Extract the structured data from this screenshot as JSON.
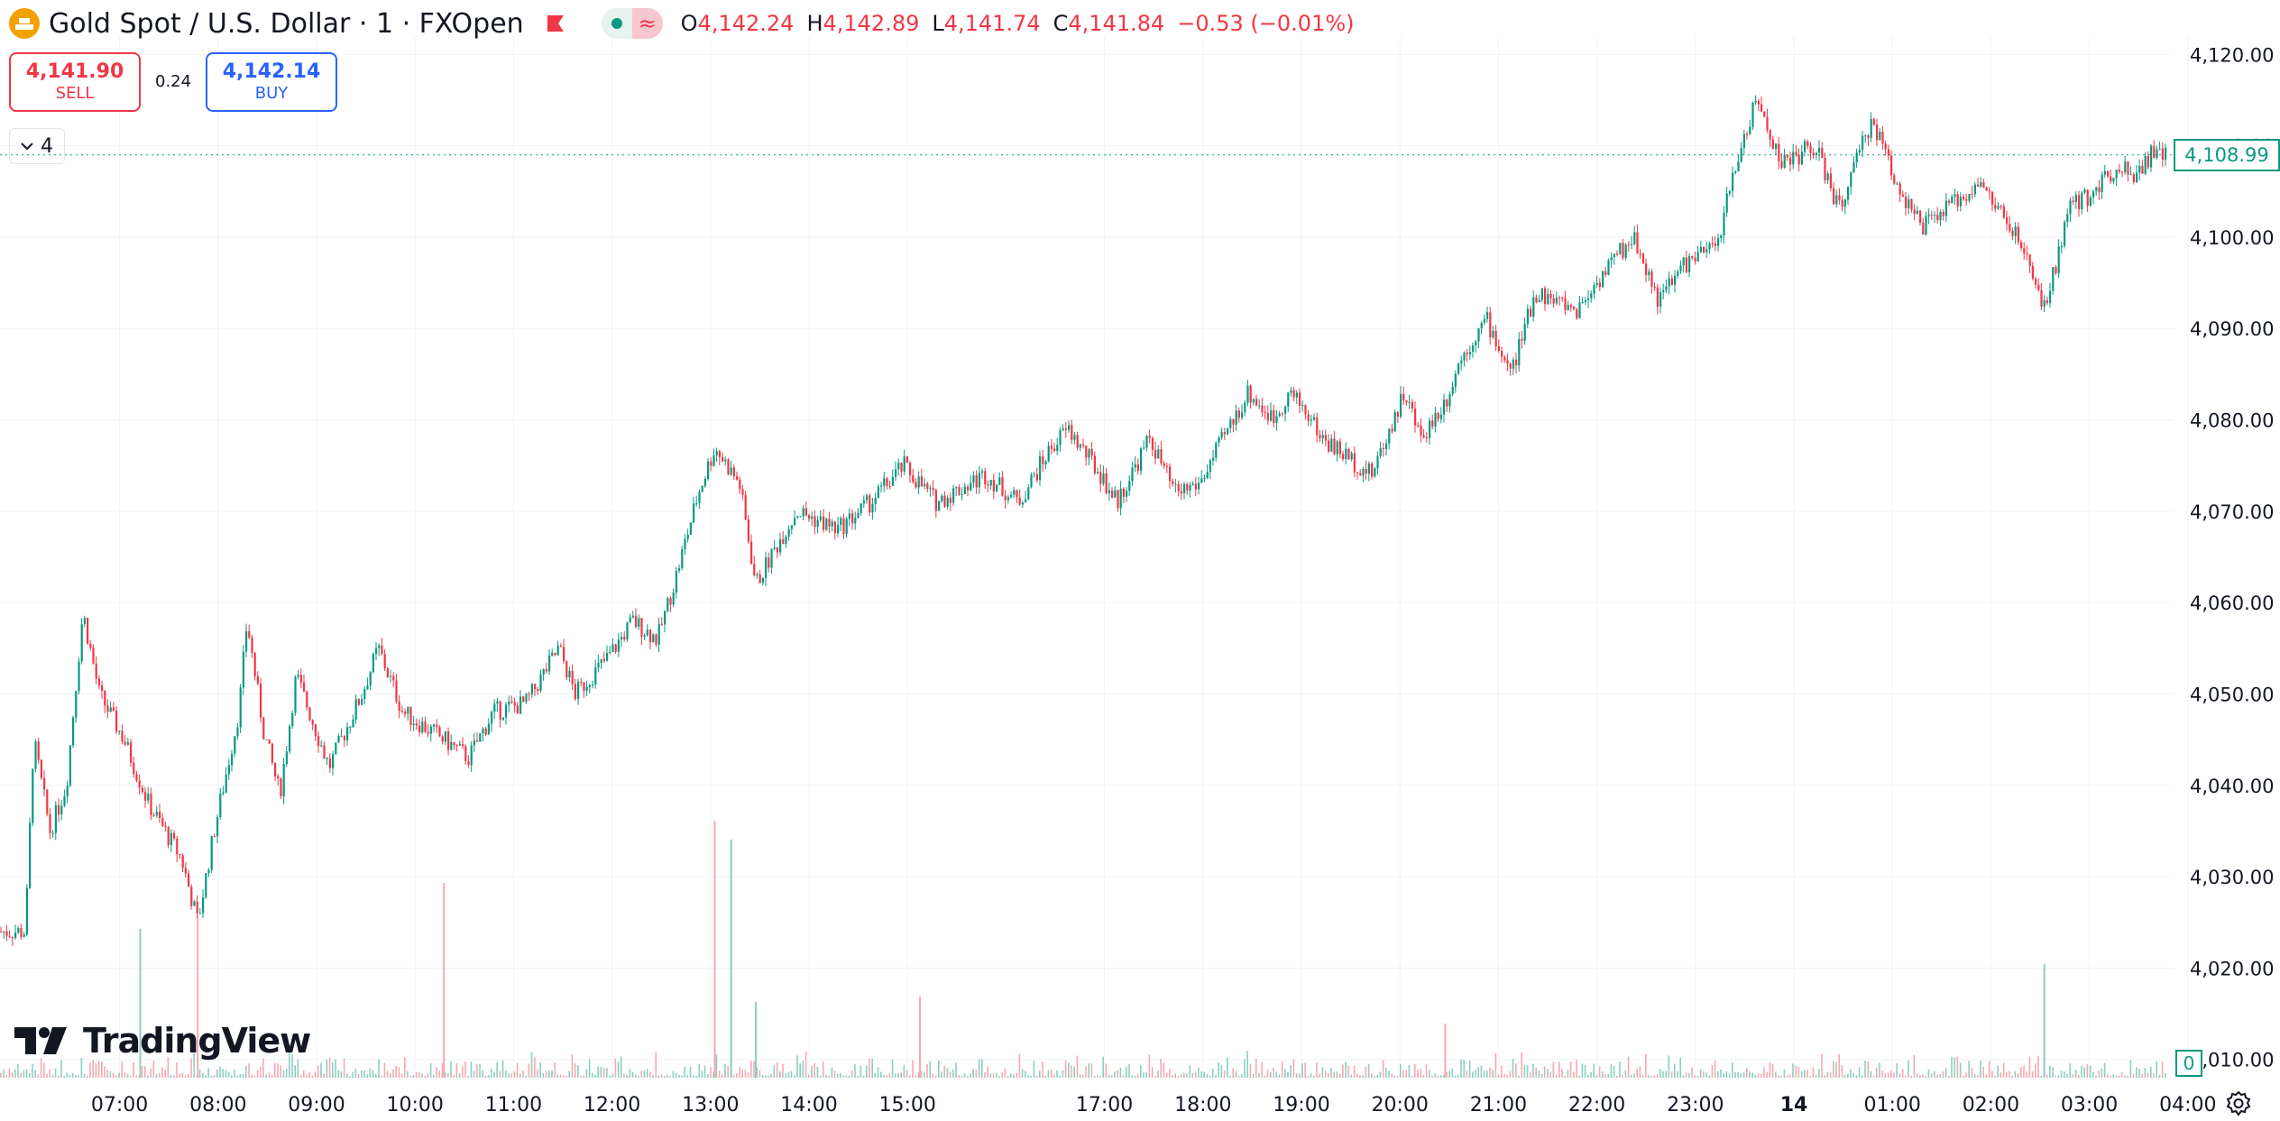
{
  "header": {
    "symbol_title": "Gold Spot / U.S. Dollar · 1 · FXOpen",
    "ohlc": [
      {
        "key": "O",
        "value": "4,142.24"
      },
      {
        "key": "H",
        "value": "4,142.89"
      },
      {
        "key": "L",
        "value": "4,141.74"
      },
      {
        "key": "C",
        "value": "4,141.84"
      }
    ],
    "change": "−0.53 (−0.01%)",
    "icons": [
      "gold-coin-icon",
      "flag-icon",
      "market-open-dot-icon",
      "indicator-wave-icon"
    ]
  },
  "trade": {
    "sell_price": "4,141.90",
    "sell_label": "SELL",
    "spread": "0.24",
    "buy_price": "4,142.14",
    "buy_label": "BUY"
  },
  "indicators_toggle": {
    "count": "4"
  },
  "branding": {
    "logo_text": "TradingView"
  },
  "price_scale": {
    "last_price_label": "4,108.99",
    "volume_label": "0"
  },
  "colors": {
    "up": "#089981",
    "down": "#f23645",
    "up_volume": "#8dcfc2",
    "down_volume": "#f7a9b0",
    "grid": "#f0f3fa",
    "text": "#131722"
  },
  "chart_data": {
    "type": "candlestick",
    "y_axis": {
      "ticks": [
        "4,120.00",
        "4,110.00",
        "4,100.00",
        "4,090.00",
        "4,080.00",
        "4,070.00",
        "4,060.00",
        "4,050.00",
        "4,040.00",
        "4,030.00",
        "4,020.00",
        "4,010.00"
      ],
      "range": [
        4008,
        4122
      ],
      "position": "right"
    },
    "x_axis": {
      "ticks": [
        "07:00",
        "08:00",
        "09:00",
        "10:00",
        "11:00",
        "12:00",
        "13:00",
        "14:00",
        "15:00",
        "17:00",
        "18:00",
        "19:00",
        "20:00",
        "21:00",
        "22:00",
        "23:00",
        "14",
        "01:00",
        "02:00",
        "03:00",
        "04:00"
      ]
    },
    "grid": true,
    "price_path": [
      {
        "t": "06:35",
        "v": 4024
      },
      {
        "t": "06:40",
        "v": 4045
      },
      {
        "t": "06:50",
        "v": 4035
      },
      {
        "t": "07:00",
        "v": 4040
      },
      {
        "t": "07:10",
        "v": 4059
      },
      {
        "t": "07:20",
        "v": 4050
      },
      {
        "t": "07:35",
        "v": 4045
      },
      {
        "t": "07:50",
        "v": 4038
      },
      {
        "t": "08:10",
        "v": 4032
      },
      {
        "t": "08:20",
        "v": 4025
      },
      {
        "t": "08:30",
        "v": 4035
      },
      {
        "t": "08:45",
        "v": 4048
      },
      {
        "t": "08:50",
        "v": 4058
      },
      {
        "t": "09:00",
        "v": 4046
      },
      {
        "t": "09:10",
        "v": 4039
      },
      {
        "t": "09:20",
        "v": 4052
      },
      {
        "t": "09:40",
        "v": 4042
      },
      {
        "t": "10:00",
        "v": 4050
      },
      {
        "t": "10:10",
        "v": 4055
      },
      {
        "t": "10:25",
        "v": 4048
      },
      {
        "t": "10:50",
        "v": 4045
      },
      {
        "t": "11:05",
        "v": 4043
      },
      {
        "t": "11:20",
        "v": 4048
      },
      {
        "t": "11:40",
        "v": 4049
      },
      {
        "t": "12:00",
        "v": 4055
      },
      {
        "t": "12:10",
        "v": 4050
      },
      {
        "t": "12:30",
        "v": 4054
      },
      {
        "t": "12:45",
        "v": 4058
      },
      {
        "t": "13:00",
        "v": 4056
      },
      {
        "t": "13:10",
        "v": 4062
      },
      {
        "t": "13:25",
        "v": 4072
      },
      {
        "t": "13:35",
        "v": 4077
      },
      {
        "t": "13:50",
        "v": 4073
      },
      {
        "t": "14:00",
        "v": 4062
      },
      {
        "t": "14:15",
        "v": 4067
      },
      {
        "t": "14:25",
        "v": 4070
      },
      {
        "t": "14:50",
        "v": 4068
      },
      {
        "t": "15:10",
        "v": 4071
      },
      {
        "t": "15:30",
        "v": 4075
      },
      {
        "t": "15:50",
        "v": 4071
      },
      {
        "t": "16:20",
        "v": 4074
      },
      {
        "t": "16:40",
        "v": 4071
      },
      {
        "t": "17:00",
        "v": 4077
      },
      {
        "t": "17:10",
        "v": 4079
      },
      {
        "t": "17:30",
        "v": 4074
      },
      {
        "t": "17:40",
        "v": 4071
      },
      {
        "t": "18:00",
        "v": 4078
      },
      {
        "t": "18:15",
        "v": 4072
      },
      {
        "t": "18:30",
        "v": 4073
      },
      {
        "t": "18:45",
        "v": 4078
      },
      {
        "t": "19:00",
        "v": 4083
      },
      {
        "t": "19:15",
        "v": 4080
      },
      {
        "t": "19:25",
        "v": 4083
      },
      {
        "t": "19:35",
        "v": 4081
      },
      {
        "t": "19:45",
        "v": 4078
      },
      {
        "t": "20:00",
        "v": 4076
      },
      {
        "t": "20:15",
        "v": 4074
      },
      {
        "t": "20:35",
        "v": 4083
      },
      {
        "t": "20:45",
        "v": 4078
      },
      {
        "t": "21:00",
        "v": 4082
      },
      {
        "t": "21:10",
        "v": 4087
      },
      {
        "t": "21:25",
        "v": 4091
      },
      {
        "t": "21:40",
        "v": 4085
      },
      {
        "t": "21:55",
        "v": 4094
      },
      {
        "t": "22:20",
        "v": 4092
      },
      {
        "t": "22:40",
        "v": 4097
      },
      {
        "t": "22:55",
        "v": 4100
      },
      {
        "t": "23:10",
        "v": 4093
      },
      {
        "t": "23:25",
        "v": 4097
      },
      {
        "t": "23:45",
        "v": 4099
      },
      {
        "t": "00:00",
        "v": 4110
      },
      {
        "t": "00:10",
        "v": 4115
      },
      {
        "t": "00:25",
        "v": 4108
      },
      {
        "t": "00:45",
        "v": 4110
      },
      {
        "t": "01:00",
        "v": 4103
      },
      {
        "t": "01:20",
        "v": 4113
      },
      {
        "t": "01:35",
        "v": 4106
      },
      {
        "t": "01:50",
        "v": 4101
      },
      {
        "t": "02:05",
        "v": 4103
      },
      {
        "t": "02:25",
        "v": 4106
      },
      {
        "t": "02:45",
        "v": 4101
      },
      {
        "t": "03:00",
        "v": 4095
      },
      {
        "t": "03:05",
        "v": 4092
      },
      {
        "t": "03:20",
        "v": 4103
      },
      {
        "t": "03:35",
        "v": 4105
      },
      {
        "t": "03:50",
        "v": 4108
      },
      {
        "t": "04:00",
        "v": 4107
      },
      {
        "t": "04:10",
        "v": 4109
      }
    ],
    "volume_spikes": [
      {
        "t": "13:35",
        "v": 0.95
      },
      {
        "t": "13:45",
        "v": 0.88
      },
      {
        "t": "10:50",
        "v": 0.72
      },
      {
        "t": "07:45",
        "v": 0.55
      },
      {
        "t": "08:20",
        "v": 0.6
      },
      {
        "t": "14:00",
        "v": 0.28
      },
      {
        "t": "15:40",
        "v": 0.3
      },
      {
        "t": "03:05",
        "v": 0.42
      },
      {
        "t": "21:00",
        "v": 0.2
      }
    ]
  }
}
